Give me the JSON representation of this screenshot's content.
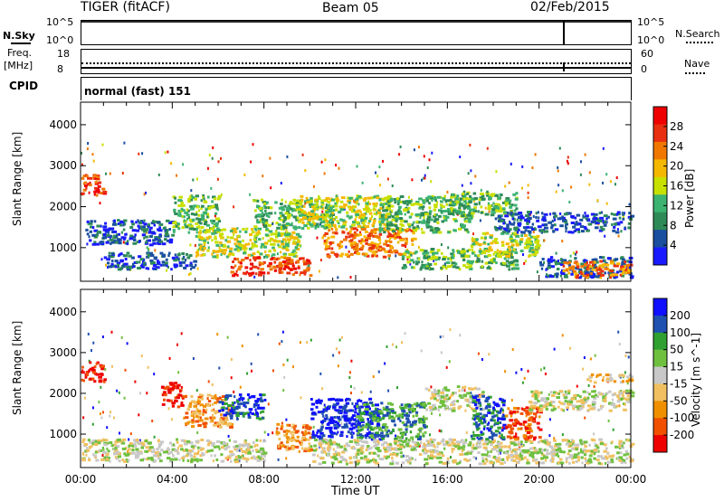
{
  "header": {
    "station": "TIGER (fitACF)",
    "beam": "Beam 05",
    "date": "02/Feb/2015"
  },
  "noise_panel": {
    "left_label": "N.Sky",
    "right_label": "N.Search",
    "ticks": [
      "10^5",
      "10^0"
    ]
  },
  "freq_panel": {
    "left_label": "Freq.",
    "unit": "[MHz]",
    "left_ticks": [
      "18",
      "8"
    ],
    "right_label": "Nave",
    "right_ticks": [
      "60",
      "0"
    ]
  },
  "cpid_panel": {
    "label": "CPID",
    "value": "normal (fast) 151"
  },
  "colors": {
    "power_scale": [
      "#1a1aff",
      "#1a4fa0",
      "#2e8b57",
      "#3cb371",
      "#c8e000",
      "#f5b800",
      "#f07800",
      "#e83010",
      "#ee0000"
    ],
    "velocity_scale": [
      "#ee0000",
      "#f05000",
      "#f09000",
      "#f0c060",
      "#c8c8c8",
      "#70c040",
      "#30a030",
      "#2050b0",
      "#1010ff"
    ]
  },
  "chart_data": [
    {
      "type": "heatmap",
      "name": "power",
      "ylabel": "Slant Range [km]",
      "ylim": [
        180,
        4550
      ],
      "yticks": [
        "1000",
        "2000",
        "3000",
        "4000"
      ],
      "xlim": [
        0,
        24
      ],
      "colorbar": {
        "label": "Power [dB]",
        "ticks": [
          "28",
          "24",
          "20",
          "16",
          "12",
          "8",
          "4"
        ]
      },
      "bands": [
        {
          "t0": 0.0,
          "t1": 1.0,
          "r0": 2300,
          "r1": 2800,
          "level": 7
        },
        {
          "t0": 0.2,
          "t1": 4.0,
          "r0": 1100,
          "r1": 1700,
          "level": 1
        },
        {
          "t0": 1.0,
          "t1": 5.0,
          "r0": 500,
          "r1": 900,
          "level": 1
        },
        {
          "t0": 4.0,
          "t1": 6.0,
          "r0": 1400,
          "r1": 2300,
          "level": 3
        },
        {
          "t0": 5.0,
          "t1": 9.5,
          "r0": 800,
          "r1": 1500,
          "level": 4
        },
        {
          "t0": 6.5,
          "t1": 10.0,
          "r0": 350,
          "r1": 800,
          "level": 7
        },
        {
          "t0": 7.5,
          "t1": 11.0,
          "r0": 1500,
          "r1": 2200,
          "level": 3
        },
        {
          "t0": 9.5,
          "t1": 13.5,
          "r0": 1500,
          "r1": 2300,
          "level": 4
        },
        {
          "t0": 10.5,
          "t1": 14.5,
          "r0": 800,
          "r1": 1500,
          "level": 6
        },
        {
          "t0": 13.0,
          "t1": 17.0,
          "r0": 1400,
          "r1": 2300,
          "level": 3
        },
        {
          "t0": 14.0,
          "t1": 19.0,
          "r0": 500,
          "r1": 1000,
          "level": 3
        },
        {
          "t0": 16.0,
          "t1": 19.0,
          "r0": 1800,
          "r1": 2400,
          "level": 3
        },
        {
          "t0": 17.0,
          "t1": 20.0,
          "r0": 800,
          "r1": 1400,
          "level": 4
        },
        {
          "t0": 18.0,
          "t1": 24.0,
          "r0": 1400,
          "r1": 1900,
          "level": 1
        },
        {
          "t0": 20.0,
          "t1": 24.0,
          "r0": 300,
          "r1": 800,
          "level": 1
        },
        {
          "t0": 21.0,
          "t1": 24.0,
          "r0": 300,
          "r1": 700,
          "level": 6
        }
      ]
    },
    {
      "type": "heatmap",
      "name": "velocity",
      "ylabel": "Slant Range [km]",
      "ylim": [
        180,
        4550
      ],
      "yticks": [
        "1000",
        "2000",
        "3000",
        "4000"
      ],
      "xlabel": "Time UT",
      "xticks": [
        "00:00",
        "04:00",
        "08:00",
        "12:00",
        "16:00",
        "20:00",
        "00:00"
      ],
      "xlim": [
        0,
        24
      ],
      "colorbar": {
        "label": "Velocity [m s^-1]",
        "ticks": [
          "200",
          "100",
          "50",
          "15",
          "-15",
          "-50",
          "-100",
          "-200"
        ]
      },
      "bands": [
        {
          "t0": 0.0,
          "t1": 1.0,
          "r0": 2300,
          "r1": 2800,
          "level": 0
        },
        {
          "t0": 0.0,
          "t1": 8.0,
          "r0": 350,
          "r1": 900,
          "level": 4
        },
        {
          "t0": 3.5,
          "t1": 4.5,
          "r0": 1700,
          "r1": 2300,
          "level": 0
        },
        {
          "t0": 4.5,
          "t1": 6.5,
          "r0": 1200,
          "r1": 2000,
          "level": 2
        },
        {
          "t0": 6.0,
          "t1": 8.0,
          "r0": 1400,
          "r1": 2000,
          "level": 7
        },
        {
          "t0": 8.5,
          "t1": 10.0,
          "r0": 600,
          "r1": 1300,
          "level": 2
        },
        {
          "t0": 10.0,
          "t1": 13.0,
          "r0": 900,
          "r1": 1900,
          "level": 8
        },
        {
          "t0": 12.0,
          "t1": 15.0,
          "r0": 900,
          "r1": 1800,
          "level": 6
        },
        {
          "t0": 10.0,
          "t1": 24.0,
          "r0": 300,
          "r1": 900,
          "level": 4
        },
        {
          "t0": 15.0,
          "t1": 17.5,
          "r0": 1600,
          "r1": 2200,
          "level": 4
        },
        {
          "t0": 17.0,
          "t1": 18.5,
          "r0": 900,
          "r1": 2000,
          "level": 7
        },
        {
          "t0": 18.5,
          "t1": 20.0,
          "r0": 900,
          "r1": 1700,
          "level": 1
        },
        {
          "t0": 19.5,
          "t1": 24.0,
          "r0": 1600,
          "r1": 2100,
          "level": 4
        },
        {
          "t0": 22.0,
          "t1": 24.0,
          "r0": 2300,
          "r1": 2500,
          "level": 3
        }
      ]
    }
  ]
}
